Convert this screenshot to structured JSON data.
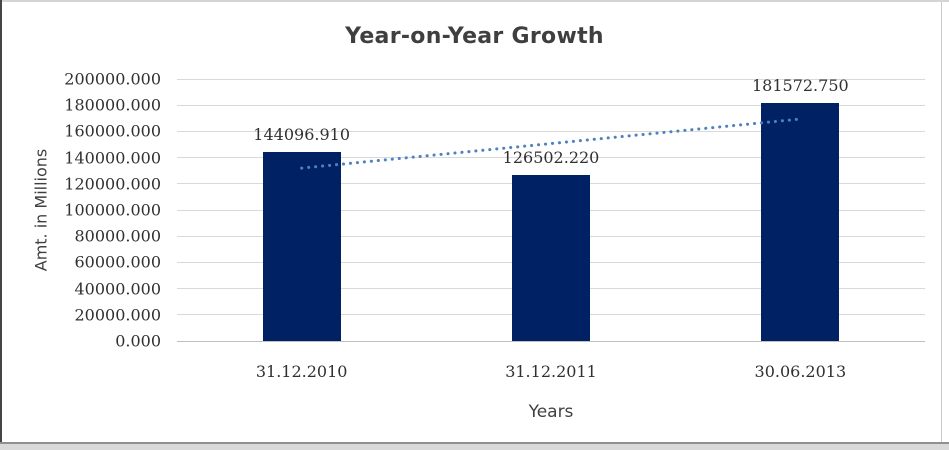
{
  "chart_data": {
    "type": "bar",
    "title": "Year-on-Year Growth",
    "xlabel": "Years",
    "ylabel": "Amt. in Millions",
    "categories": [
      "31.12.2010",
      "31.12.2011",
      "30.06.2013"
    ],
    "values": [
      144096.91,
      126502.22,
      181572.75
    ],
    "data_labels": [
      "144096.910",
      "126502.220",
      "181572.750"
    ],
    "ylim": [
      0,
      200000
    ],
    "ytick_step": 20000,
    "ytick_decimals": 3,
    "grid": true,
    "legend": "none",
    "bar_color": "#002264",
    "trendline": {
      "type": "linear",
      "style": "dotted",
      "color": "#4F81BD"
    },
    "gridline_color": "#d9d9d9",
    "axis_line_color": "#bfbfbf",
    "text_color": "#303030",
    "title_color": "#3f3f3f"
  }
}
